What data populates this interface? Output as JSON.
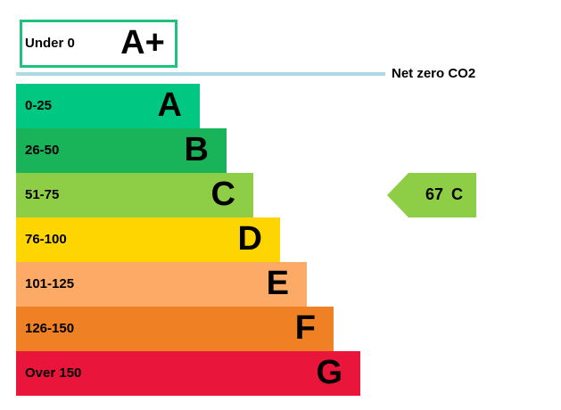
{
  "top_rating": {
    "range": "Under 0",
    "letter": "A+",
    "color": "#1fc27d"
  },
  "net_zero": {
    "label": "Net zero CO2",
    "color": "#add8e6"
  },
  "bands": [
    {
      "range": "0-25",
      "letter": "A",
      "color": "#00c781"
    },
    {
      "range": "26-50",
      "letter": "B",
      "color": "#19b459"
    },
    {
      "range": "51-75",
      "letter": "C",
      "color": "#8dce46"
    },
    {
      "range": "76-100",
      "letter": "D",
      "color": "#ffd500"
    },
    {
      "range": "101-125",
      "letter": "E",
      "color": "#fcaa65"
    },
    {
      "range": "126-150",
      "letter": "F",
      "color": "#ef8023"
    },
    {
      "range": "Over 150",
      "letter": "G",
      "color": "#e9153b"
    }
  ],
  "current": {
    "score": 67,
    "letter": "C"
  }
}
